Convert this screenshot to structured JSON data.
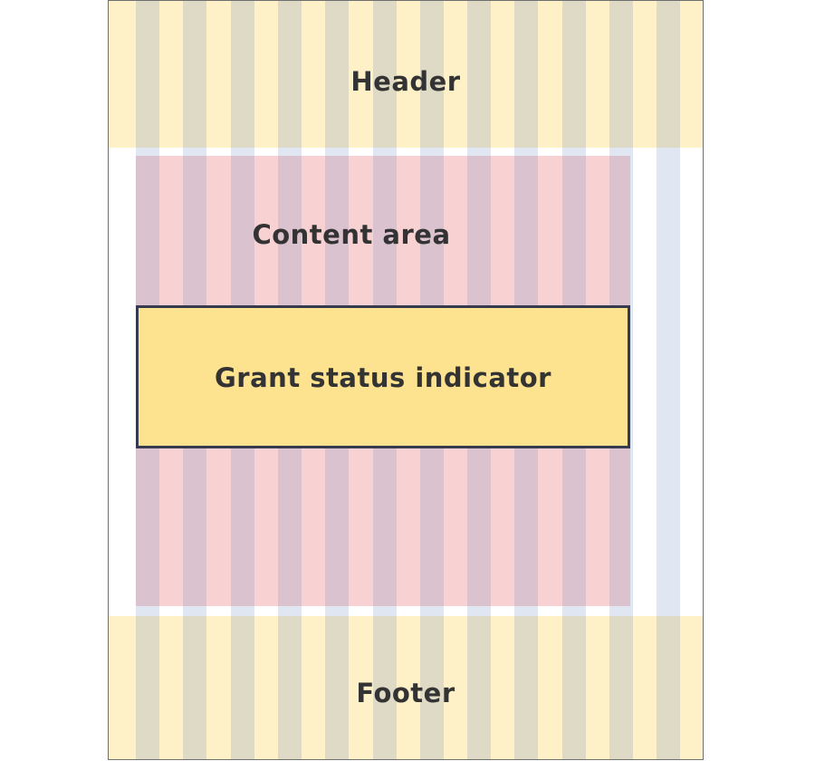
{
  "wireframe": {
    "header_label": "Header",
    "content_label": "Content area",
    "indicator_label": "Grant status indicator",
    "footer_label": "Footer"
  },
  "colors": {
    "header_footer_fill": "#fef0c7",
    "content_fill": "#f8d2d3",
    "indicator_fill": "#fde290",
    "indicator_border": "#363a4e",
    "grid_column": "#dce4f0"
  },
  "grid": {
    "columns": 12
  }
}
